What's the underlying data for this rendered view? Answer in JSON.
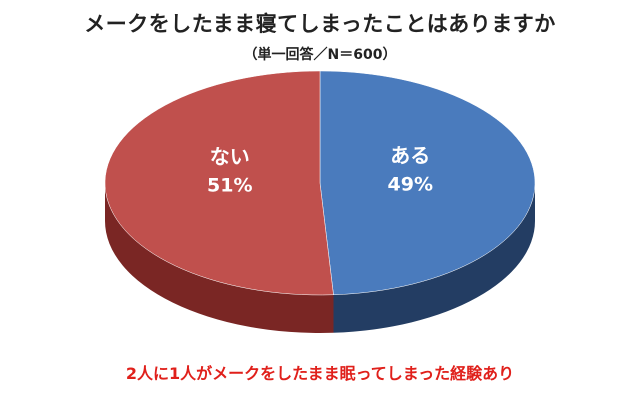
{
  "chart_data": {
    "type": "pie",
    "title": "メークをしたまま寝てしまったことはありますか",
    "subtitle": "（単一回答／N＝600）",
    "slices": [
      {
        "label": "ある",
        "value": 49,
        "value_label": "49%",
        "color": "#4a7bbd",
        "side_color": "#233d63"
      },
      {
        "label": "ない",
        "value": 51,
        "value_label": "51%",
        "color": "#c0504d",
        "side_color": "#7a2624"
      }
    ],
    "note": "2人に1人がメークをしたまま眠ってしまった経験あり",
    "note_color": "#e0201b"
  }
}
